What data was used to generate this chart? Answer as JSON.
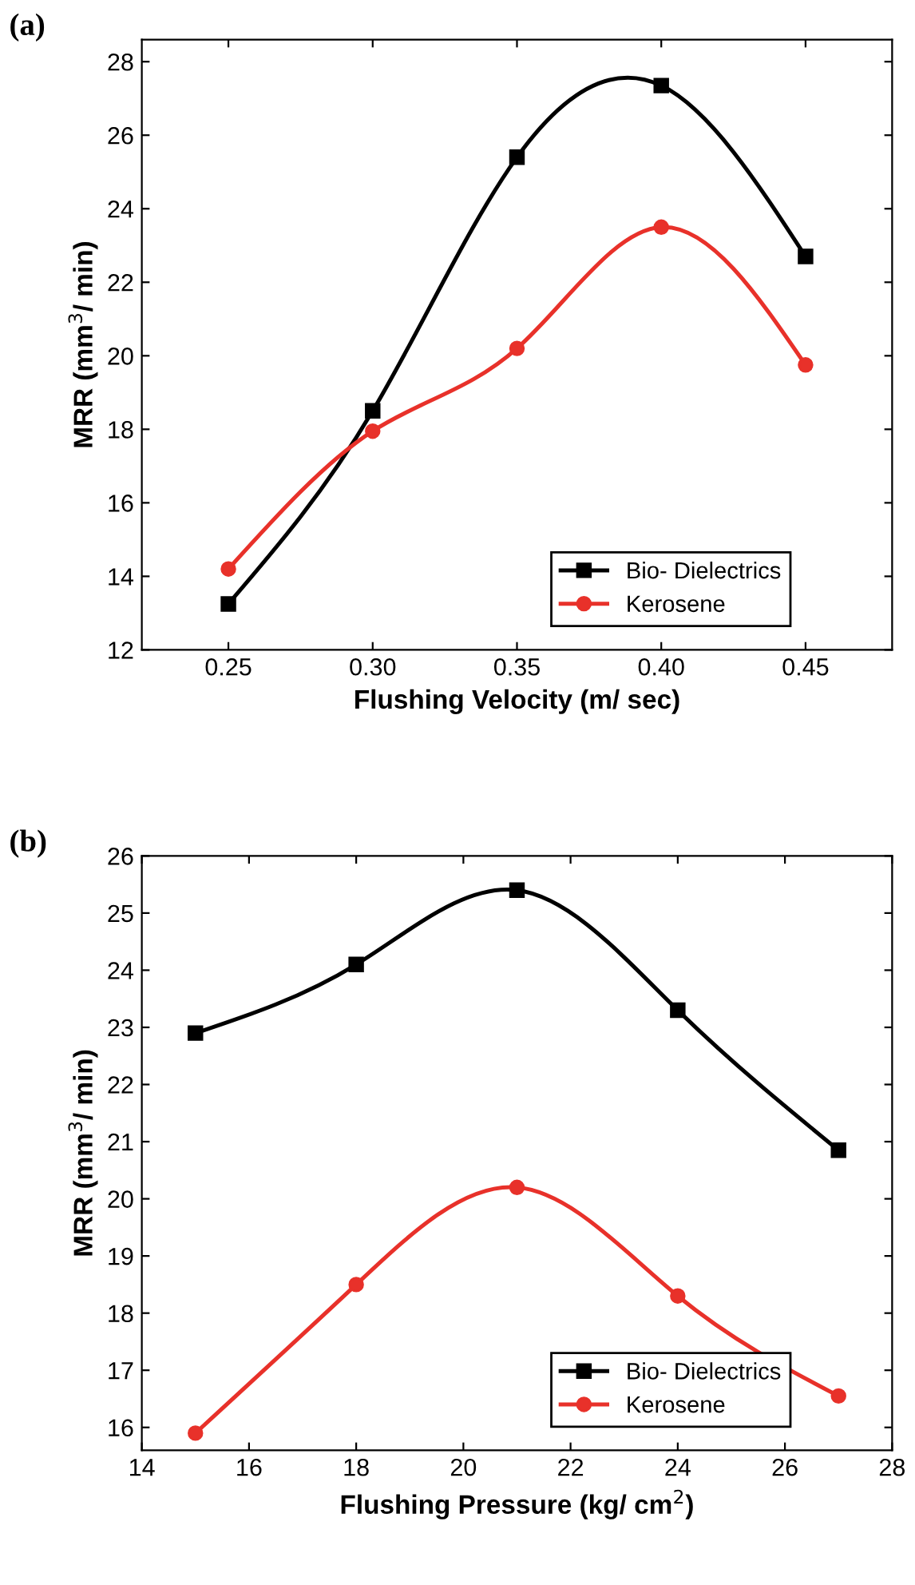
{
  "chart_data": [
    {
      "type": "line",
      "title": "(a)",
      "xlabel": "Flushing Velocity (m/ sec)",
      "ylabel": "MRR (mm$^{3}$/ min)",
      "x": [
        0.25,
        0.3,
        0.35,
        0.4,
        0.45
      ],
      "series": [
        {
          "name": "Bio- Dielectrics",
          "color": "#000000",
          "marker": "square",
          "values": [
            13.25,
            18.5,
            25.4,
            27.35,
            22.7
          ]
        },
        {
          "name": "Kerosene",
          "color": "#e8312a",
          "marker": "circle",
          "values": [
            14.2,
            17.95,
            20.2,
            23.5,
            19.75
          ]
        }
      ],
      "xlim": [
        0.22,
        0.48
      ],
      "xticks": [
        {
          "value": 0.25,
          "label": "0.25"
        },
        {
          "value": 0.3,
          "label": "0.30"
        },
        {
          "value": 0.35,
          "label": "0.35"
        },
        {
          "value": 0.4,
          "label": "0.40"
        },
        {
          "value": 0.45,
          "label": "0.45"
        }
      ],
      "ylim": [
        12,
        28.6
      ],
      "yticks": [
        12,
        14,
        16,
        18,
        20,
        22,
        24,
        26,
        28
      ],
      "legend": "bottom right",
      "grid": false
    },
    {
      "type": "line",
      "title": "(b)",
      "xlabel": "Flushing Pressure (kg/ cm$^{2}$)",
      "ylabel": "MRR (mm$^{3}$/ min)",
      "x": [
        15,
        18,
        21,
        24,
        27
      ],
      "series": [
        {
          "name": "Bio- Dielectrics",
          "color": "#000000",
          "marker": "square",
          "values": [
            22.9,
            24.1,
            25.4,
            23.3,
            20.85
          ]
        },
        {
          "name": "Kerosene",
          "color": "#e8312a",
          "marker": "circle",
          "values": [
            15.9,
            18.5,
            20.2,
            18.3,
            16.55
          ]
        }
      ],
      "xlim": [
        14,
        28
      ],
      "xticks": [
        14,
        16,
        18,
        20,
        22,
        24,
        26,
        28
      ],
      "ylim": [
        15.6,
        26
      ],
      "yticks": [
        16,
        17,
        18,
        19,
        20,
        21,
        22,
        23,
        24,
        25,
        26
      ],
      "legend": "bottom right",
      "grid": false
    }
  ]
}
